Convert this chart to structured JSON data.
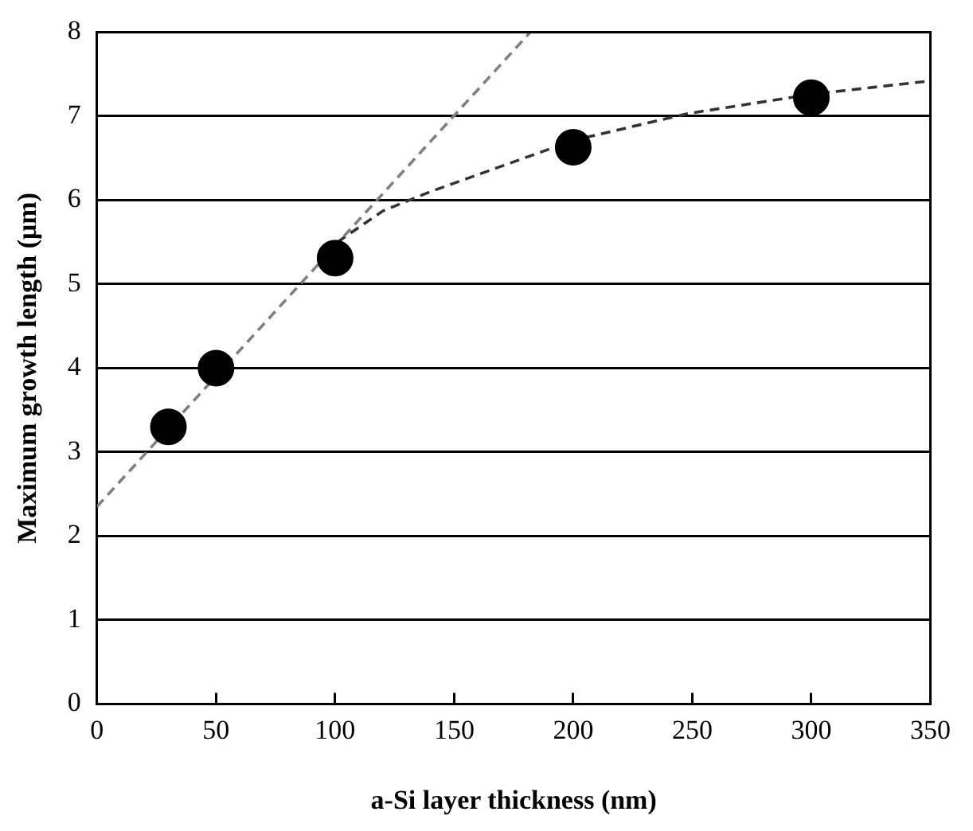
{
  "chart_data": {
    "type": "scatter",
    "xlabel": "a-Si layer thickness (nm)",
    "ylabel": "Maximum growth length (μm)",
    "xlim": [
      0,
      350
    ],
    "xticks": [
      0,
      50,
      100,
      150,
      200,
      250,
      300,
      350
    ],
    "ylim": [
      0,
      8
    ],
    "yticks": [
      0,
      1,
      2,
      3,
      4,
      5,
      6,
      7,
      8
    ],
    "grid": "y",
    "legend": false,
    "marker": "circle",
    "series": [
      {
        "color": "#000000",
        "x": [
          30,
          50,
          100,
          200,
          300
        ],
        "values": [
          3.3,
          4.0,
          5.31,
          6.63,
          7.22
        ]
      },
      {
        "type": "line",
        "color": "#808080",
        "line_style": "dashed",
        "marker": "none",
        "x": [
          0,
          182
        ],
        "values": [
          2.35,
          8
        ]
      },
      {
        "type": "line",
        "color": "#333333",
        "line_style": "dashed",
        "marker": "none",
        "x": [
          101,
          120,
          140,
          200,
          248,
          300,
          350
        ],
        "values": [
          5.5,
          5.87,
          6.1,
          6.71,
          7.03,
          7.26,
          7.42
        ]
      }
    ]
  }
}
